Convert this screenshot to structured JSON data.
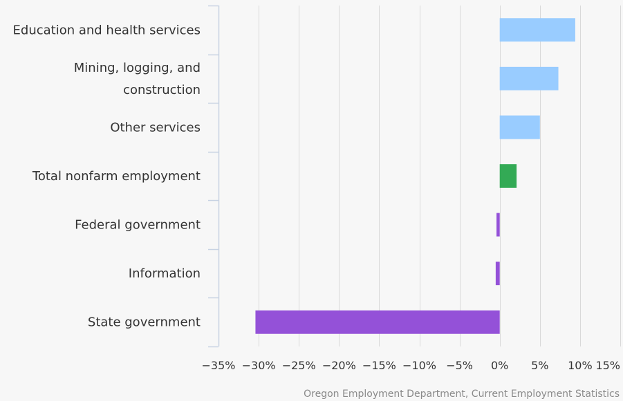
{
  "chart_data": {
    "type": "bar",
    "orientation": "horizontal",
    "title": "",
    "xlabel": "",
    "ylabel": "",
    "categories": [
      [
        "Education and health services"
      ],
      [
        "Mining, logging, and",
        "construction"
      ],
      [
        "Other services"
      ],
      [
        "Total nonfarm employment"
      ],
      [
        "Federal government"
      ],
      [
        "Information"
      ],
      [
        "State government"
      ]
    ],
    "values": [
      9.4,
      7.3,
      5.0,
      2.1,
      -0.4,
      -0.5,
      -30.4
    ],
    "bar_colors": [
      "#99ccff",
      "#99ccff",
      "#99ccff",
      "#33aa55",
      "#9451d8",
      "#9451d8",
      "#9451d8"
    ],
    "xlim": [
      -35,
      15
    ],
    "ticks": [
      -35,
      -30,
      -25,
      -20,
      -15,
      -10,
      -5,
      0,
      5,
      10,
      15
    ],
    "tick_labels": [
      "−35%",
      "−30%",
      "−25%",
      "−20%",
      "−15%",
      "−10%",
      "−5%",
      "0%",
      "5%",
      "10%",
      "15%"
    ],
    "grid": true,
    "credit": "Oregon Employment Department, Current Employment Statistics"
  },
  "colors": {
    "background": "#f7f7f7",
    "gridline": "#d9d9d9",
    "axis_line": "#c8d3e3",
    "text": "#333333"
  }
}
